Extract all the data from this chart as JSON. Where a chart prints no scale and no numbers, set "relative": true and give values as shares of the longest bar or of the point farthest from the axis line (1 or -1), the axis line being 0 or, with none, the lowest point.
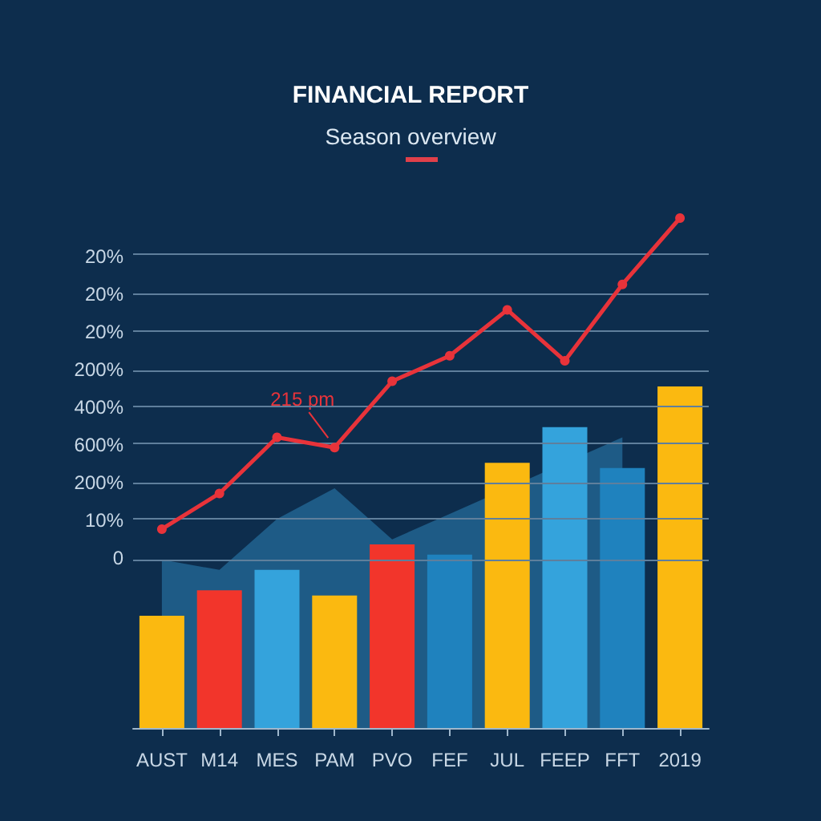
{
  "chart_data": {
    "type": "bar",
    "title": "FINANCIAL REPORT",
    "subtitle": "Season overview",
    "relative": true,
    "categories": [
      "AUST",
      "M14",
      "MES",
      "PAM",
      "PVO",
      "FEF",
      "JUL",
      "FEEP",
      "FFT",
      "2019"
    ],
    "series": [
      {
        "type": "area",
        "color": "#1e5b86",
        "values": [
          0.33,
          0.31,
          0.41,
          0.47,
          0.37,
          0.42,
          null,
          null,
          0.57,
          null
        ]
      },
      {
        "colors": [
          "#fbb910",
          "#f2352b",
          "#34a3dc",
          "#fbb910",
          "#f2352b",
          "#1f82be",
          "#fbb910",
          "#34a3dc",
          "#1f82be",
          "#fbb910"
        ],
        "values": [
          0.22,
          0.27,
          0.31,
          0.26,
          0.36,
          0.34,
          0.52,
          0.59,
          0.51,
          0.67
        ]
      },
      {
        "type": "line",
        "color": "#e8333a",
        "marker": "circle",
        "values": [
          0.39,
          0.46,
          0.57,
          0.55,
          0.68,
          0.73,
          0.82,
          0.72,
          0.87,
          1
        ]
      }
    ],
    "annotations": [
      {
        "text": "215 pm",
        "x": "PAM",
        "y": 0.55
      },
      "20%",
      "20%",
      "20%",
      "200%",
      "400%",
      "600%",
      "200%",
      "10%",
      "0"
    ],
    "ref_lines": [
      {
        "axis": "y",
        "value": 0.925
      },
      {
        "axis": "y",
        "value": 0.85
      },
      {
        "axis": "y",
        "value": 0.777
      },
      {
        "axis": "y",
        "value": 0.703
      },
      {
        "axis": "y",
        "value": 0.629
      },
      {
        "axis": "y",
        "value": 0.555
      },
      {
        "axis": "y",
        "value": 0.481
      },
      {
        "axis": "y",
        "value": 0.407
      },
      {
        "axis": "y",
        "value": 0.333
      }
    ]
  }
}
